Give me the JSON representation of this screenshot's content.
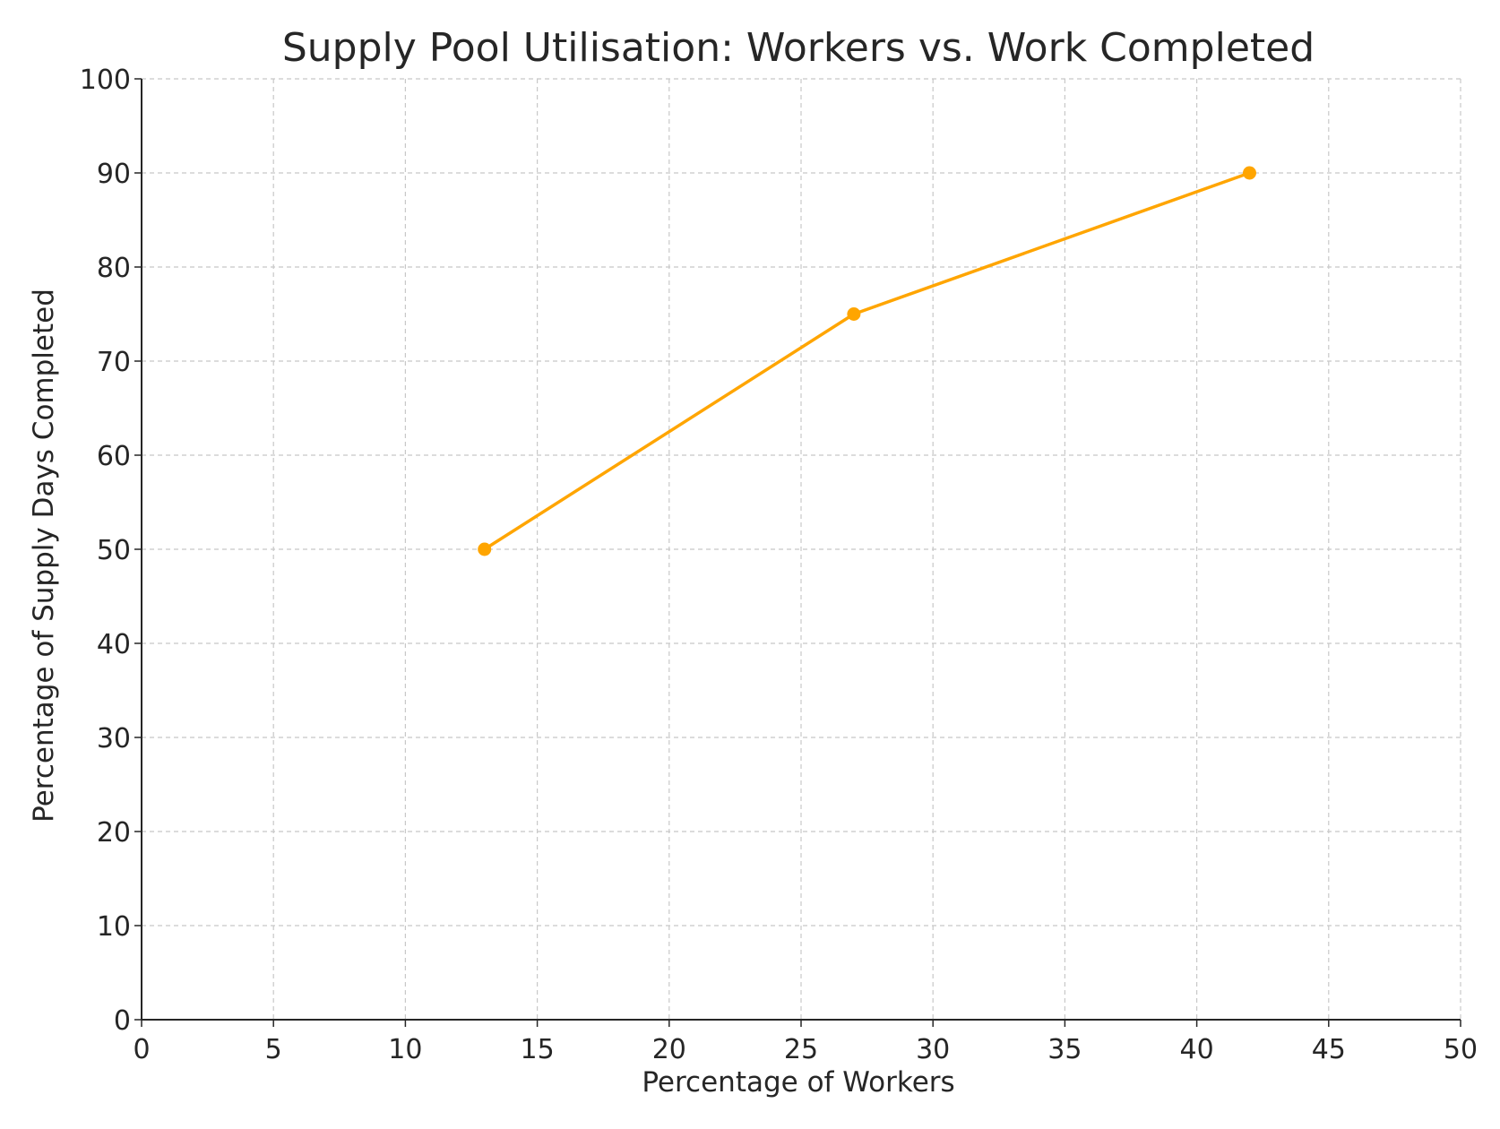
{
  "chart_data": {
    "type": "line",
    "title": "Supply Pool Utilisation: Workers vs. Work Completed",
    "xlabel": "Percentage of Workers",
    "ylabel": "Percentage of Supply Days Completed",
    "xlim": [
      0,
      50
    ],
    "ylim": [
      0,
      100
    ],
    "xticks": [
      "0",
      "5",
      "10",
      "15",
      "20",
      "25",
      "30",
      "35",
      "40",
      "45",
      "50"
    ],
    "yticks": [
      "0",
      "10",
      "20",
      "30",
      "40",
      "50",
      "60",
      "70",
      "80",
      "90",
      "100"
    ],
    "grid": true,
    "grid_style": "dashed",
    "legend": "none",
    "series": [
      {
        "color": "#FFA500",
        "marker": "circle",
        "x": [
          13,
          27,
          42
        ],
        "y": [
          50,
          75,
          90
        ]
      }
    ]
  }
}
